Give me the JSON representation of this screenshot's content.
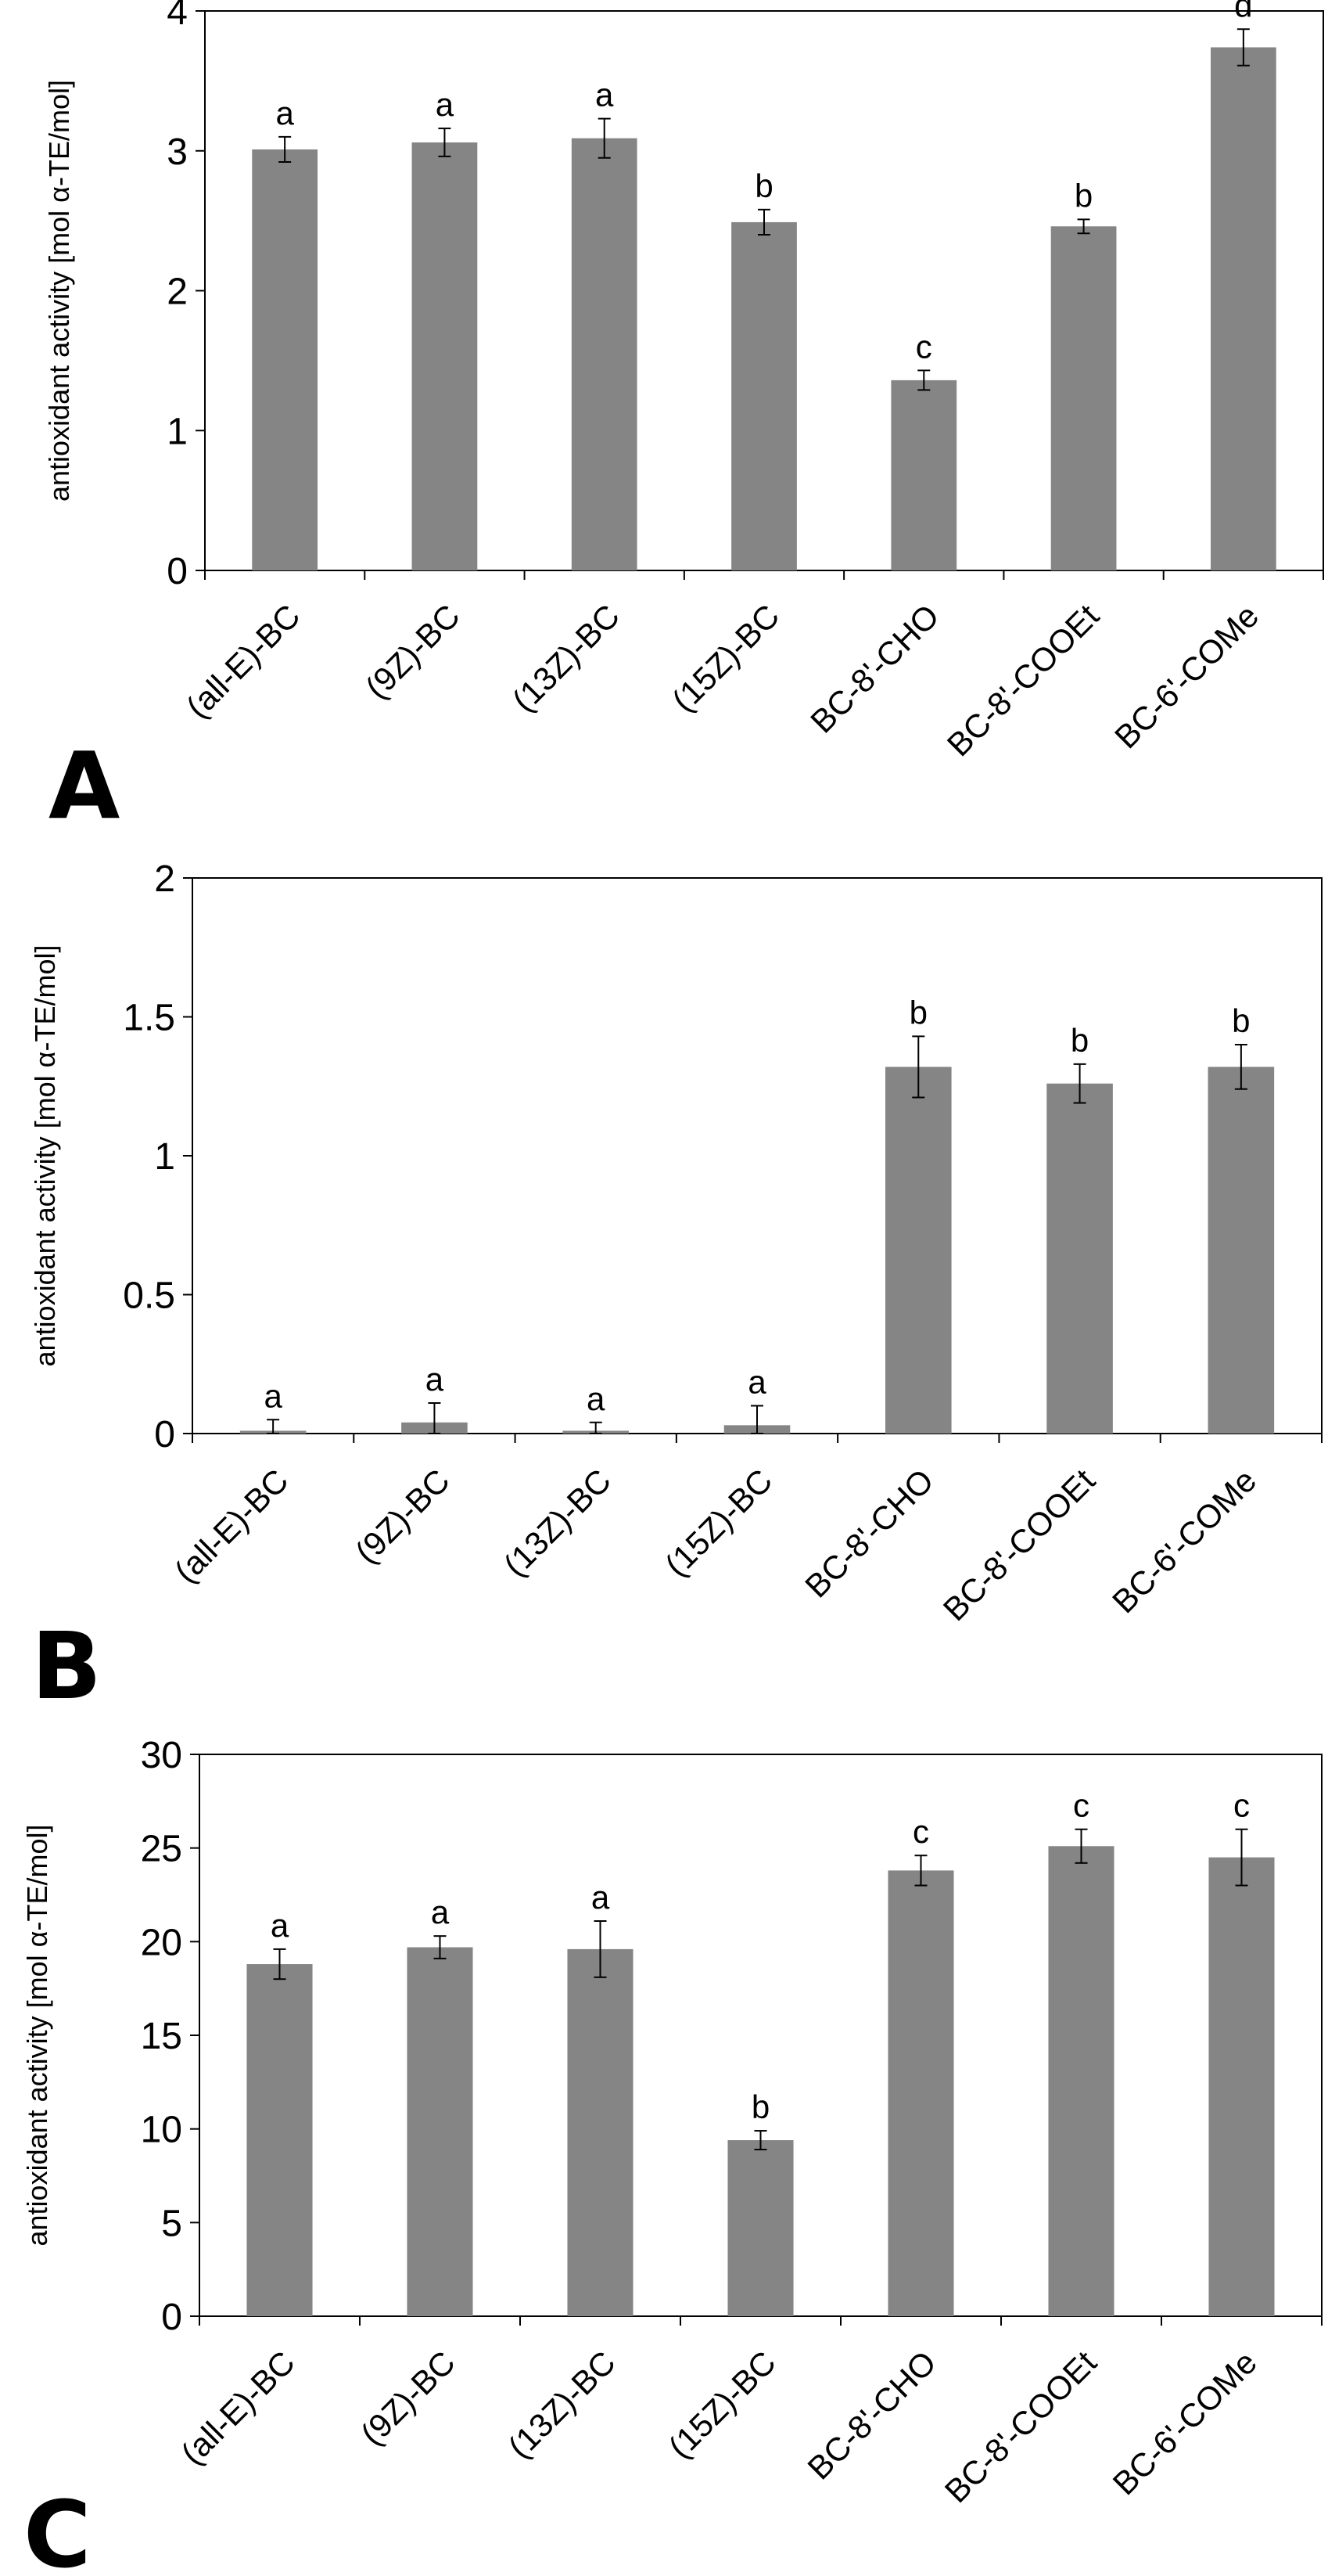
{
  "colors": {
    "bar": "#858585",
    "axis": "#000000",
    "background": "#ffffff"
  },
  "chart_data": [
    {
      "type": "bar",
      "panel": "A",
      "ylabel": "antioxidant activity [mol α-TE/mol]",
      "ylim": [
        0,
        4
      ],
      "yticks": [
        0,
        1,
        2,
        3,
        4
      ],
      "categories": [
        "(all-E)-BC",
        "(9Z)-BC",
        "(13Z)-BC",
        "(15Z)-BC",
        "BC-8'-CHO",
        "BC-8'-COOEt",
        "BC-6'-COMe"
      ],
      "values": [
        3.01,
        3.06,
        3.09,
        2.49,
        1.36,
        2.46,
        3.74
      ],
      "errors": [
        0.09,
        0.1,
        0.14,
        0.09,
        0.07,
        0.05,
        0.13
      ],
      "letters": [
        "a",
        "a",
        "a",
        "b",
        "c",
        "b",
        "d"
      ]
    },
    {
      "type": "bar",
      "panel": "B",
      "ylabel": "antioxidant activity [mol α-TE/mol]",
      "ylim": [
        0,
        2
      ],
      "yticks": [
        "0",
        "0.5",
        "1",
        "1.5",
        "2"
      ],
      "categories": [
        "(all-E)-BC",
        "(9Z)-BC",
        "(13Z)-BC",
        "(15Z)-BC",
        "BC-8'-CHO",
        "BC-8'-COOEt",
        "BC-6'-COMe"
      ],
      "values": [
        0.01,
        0.04,
        0.01,
        0.03,
        1.32,
        1.26,
        1.32
      ],
      "errors": [
        0.04,
        0.07,
        0.03,
        0.07,
        0.11,
        0.07,
        0.08
      ],
      "letters": [
        "a",
        "a",
        "a",
        "a",
        "b",
        "b",
        "b"
      ]
    },
    {
      "type": "bar",
      "panel": "C",
      "ylabel": "antioxidant activity [mol α-TE/mol]",
      "ylim": [
        0,
        30
      ],
      "yticks": [
        0,
        5,
        10,
        15,
        20,
        25,
        30
      ],
      "categories": [
        "(all-E)-BC",
        "(9Z)-BC",
        "(13Z)-BC",
        "(15Z)-BC",
        "BC-8'-CHO",
        "BC-8'-COOEt",
        "BC-6'-COMe"
      ],
      "values": [
        18.8,
        19.7,
        19.6,
        9.4,
        23.8,
        25.1,
        24.5
      ],
      "errors": [
        0.8,
        0.6,
        1.5,
        0.5,
        0.8,
        0.9,
        1.5
      ],
      "letters": [
        "a",
        "a",
        "a",
        "b",
        "c",
        "c",
        "c"
      ]
    }
  ]
}
